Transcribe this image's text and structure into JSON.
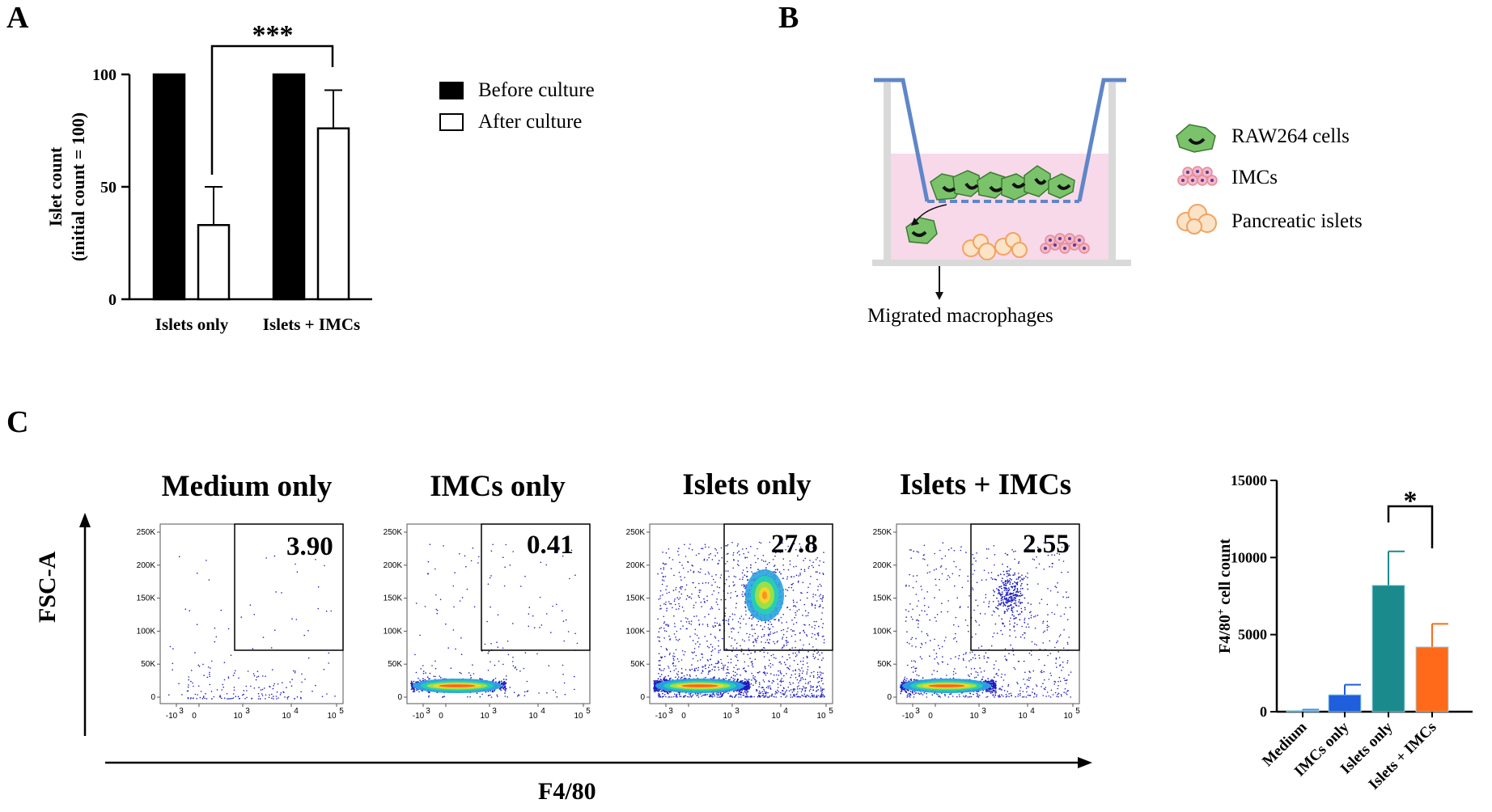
{
  "panels": {
    "a": "A",
    "b": "B",
    "c": "C"
  },
  "panel_a": {
    "significance": "***",
    "legend": [
      {
        "label": "Before culture",
        "color": "#000000"
      },
      {
        "label": "After culture",
        "color": "#ffffff"
      }
    ]
  },
  "panel_b": {
    "legend": [
      {
        "label": "RAW264 cells",
        "icon": "macrophage-icon"
      },
      {
        "label": "IMCs",
        "icon": "imc-cluster-icon"
      },
      {
        "label": "Pancreatic islets",
        "icon": "islet-icon"
      }
    ],
    "arrow_label": "Migrated macrophages",
    "colors": {
      "medium": "#f7d9ea",
      "membrane": "#5f86c8",
      "wall": "#d9d9d9",
      "cell": "#7ac36a",
      "islet": "#f3a25f",
      "imc": "#e48a9c"
    }
  },
  "panel_c": {
    "y_axis_label": "FSC-A",
    "x_axis_label": "F4/80",
    "y_ticks": [
      "250K",
      "200K",
      "150K",
      "100K",
      "50K",
      "0"
    ],
    "x_ticks": [
      "-10",
      "0",
      "10",
      "10",
      "10"
    ],
    "x_tick_exponents": [
      "3",
      "",
      "3",
      "4",
      "5"
    ],
    "plots": [
      {
        "title": "Medium only",
        "gate_value": "3.90"
      },
      {
        "title": "IMCs only",
        "gate_value": "0.41"
      },
      {
        "title": "Islets only",
        "gate_value": "27.8"
      },
      {
        "title": "Islets + IMCs",
        "gate_value": "2.55"
      }
    ]
  },
  "chart_data": [
    {
      "type": "bar",
      "categories": [
        "Islets only",
        "Islets + IMCs"
      ],
      "series": [
        {
          "name": "Before culture",
          "values": [
            100,
            100
          ],
          "errors": [
            0,
            0
          ],
          "color": "#000000"
        },
        {
          "name": "After culture",
          "values": [
            33,
            76
          ],
          "errors": [
            17,
            17
          ],
          "color": "#ffffff"
        }
      ],
      "ylabel": "Islet count",
      "ylabel_sub": "(initial count = 100)",
      "ylim": [
        0,
        100
      ],
      "y_ticks": [
        0,
        50,
        100
      ],
      "annotation": "***"
    },
    {
      "type": "bar",
      "categories": [
        "Medium",
        "IMCs only",
        "Islets only",
        "Islets + IMCs"
      ],
      "values": [
        80,
        1100,
        8200,
        4200
      ],
      "errors": [
        60,
        650,
        2200,
        1500
      ],
      "colors": [
        "#4a90e2",
        "#1f5fdc",
        "#1b8a8c",
        "#ff6a1a"
      ],
      "ylabel": "F4/80",
      "ylabel_sup": "+",
      "ylabel_rest": " cell count",
      "ylim": [
        0,
        15000
      ],
      "y_ticks": [
        0,
        5000,
        10000,
        15000
      ],
      "annotation": "*"
    }
  ]
}
